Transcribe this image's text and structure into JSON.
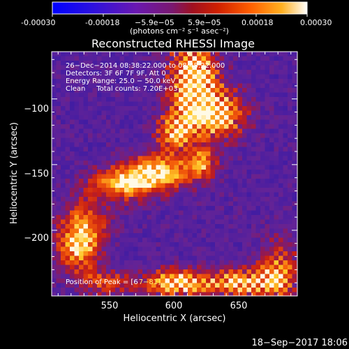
{
  "colorbar": {
    "ticks": [
      "-0.00030",
      "-0.00018",
      "−5.9e−05",
      "5.9e−05",
      "0.00018",
      "0.00030"
    ],
    "units": "(photons cm⁻² s⁻¹ asec⁻²)"
  },
  "chart_data": {
    "type": "heatmap",
    "title": "Reconstructed RHESSI Image",
    "xlabel": "Heliocentric X (arcsec)",
    "ylabel": "Heliocentric Y (arcsec)",
    "xlim": [
      505,
      695
    ],
    "ylim": [
      -250,
      -64
    ],
    "x_ticks": [
      550,
      600,
      650
    ],
    "y_ticks": [
      -100,
      -150,
      -200
    ],
    "x_tick_labels": [
      "550",
      "600",
      "650"
    ],
    "y_tick_labels": [
      "−100",
      "−150",
      "−200"
    ],
    "color_range": [
      -0.0003,
      0.0003
    ],
    "colormap": "blue-purple-red-orange-yellow-white",
    "annotations": [
      "26−Dec−2014 08:38:22.000 to 08:48:22.000",
      "Detectors: 3F 6F 7F 9F, Att 0",
      "Energy Range: 25.0 − 50.0 keV",
      "Clean     Total counts: 7.20E+03"
    ],
    "peak_label": "Position of Peak = [6",
    "peak_value_fragment": "7−81]"
  },
  "timestamp": "18−Sep−2017 18:06"
}
